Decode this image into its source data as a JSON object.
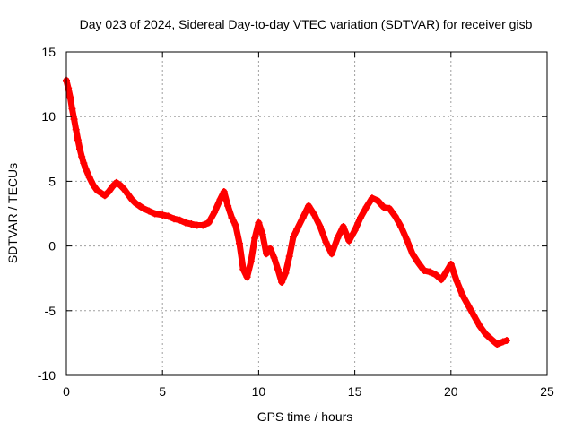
{
  "chart_data": {
    "type": "scatter",
    "title": "Day 023 of 2024, Sidereal Day-to-day VTEC variation (SDTVAR) for receiver gisb",
    "xlabel": "GPS time / hours",
    "ylabel": "SDTVAR / TECUs",
    "xlim": [
      0,
      25
    ],
    "ylim": [
      -10,
      15
    ],
    "xticks": [
      0,
      5,
      10,
      15,
      20,
      25
    ],
    "yticks": [
      -10,
      -5,
      0,
      5,
      10,
      15
    ],
    "grid": true,
    "marker": "+",
    "color": "#ff0000",
    "series": [
      {
        "name": "SDTVAR",
        "x": [
          0.0,
          0.1,
          0.2,
          0.3,
          0.4,
          0.5,
          0.6,
          0.7,
          0.8,
          0.9,
          1.0,
          1.2,
          1.4,
          1.6,
          1.8,
          2.0,
          2.2,
          2.4,
          2.6,
          2.8,
          3.0,
          3.2,
          3.4,
          3.6,
          3.8,
          4.0,
          4.3,
          4.6,
          5.0,
          5.3,
          5.6,
          5.9,
          6.2,
          6.5,
          6.8,
          7.1,
          7.4,
          7.7,
          8.0,
          8.2,
          8.4,
          8.6,
          8.8,
          9.0,
          9.2,
          9.4,
          9.6,
          9.8,
          10.0,
          10.2,
          10.4,
          10.6,
          10.8,
          11.0,
          11.2,
          11.4,
          11.6,
          11.8,
          12.0,
          12.3,
          12.6,
          12.9,
          13.2,
          13.5,
          13.8,
          14.1,
          14.4,
          14.7,
          15.0,
          15.3,
          15.6,
          15.9,
          16.2,
          16.5,
          16.8,
          17.1,
          17.4,
          17.7,
          18.0,
          18.3,
          18.6,
          18.9,
          19.2,
          19.5,
          19.8,
          20.0,
          20.3,
          20.6,
          20.9,
          21.2,
          21.5,
          21.8,
          22.1,
          22.4,
          22.7,
          22.9
        ],
        "y": [
          12.8,
          12.2,
          11.5,
          10.6,
          9.8,
          9.0,
          8.2,
          7.5,
          6.9,
          6.4,
          6.0,
          5.3,
          4.7,
          4.3,
          4.1,
          3.9,
          4.2,
          4.6,
          4.9,
          4.7,
          4.4,
          4.0,
          3.6,
          3.3,
          3.1,
          2.9,
          2.7,
          2.5,
          2.4,
          2.3,
          2.1,
          2.0,
          1.8,
          1.7,
          1.6,
          1.6,
          1.8,
          2.6,
          3.6,
          4.2,
          3.1,
          2.2,
          1.6,
          0.2,
          -1.8,
          -2.4,
          -1.2,
          0.6,
          1.8,
          0.9,
          -0.6,
          -0.2,
          -0.9,
          -1.8,
          -2.8,
          -2.1,
          -0.8,
          0.7,
          1.3,
          2.2,
          3.1,
          2.4,
          1.5,
          0.3,
          -0.6,
          0.6,
          1.5,
          0.4,
          1.2,
          2.2,
          3.0,
          3.7,
          3.5,
          3.0,
          2.9,
          2.3,
          1.5,
          0.5,
          -0.6,
          -1.3,
          -1.9,
          -2.0,
          -2.2,
          -2.6,
          -1.9,
          -1.4,
          -2.7,
          -3.8,
          -4.6,
          -5.4,
          -6.2,
          -6.8,
          -7.2,
          -7.6,
          -7.4,
          -7.3
        ]
      }
    ]
  }
}
